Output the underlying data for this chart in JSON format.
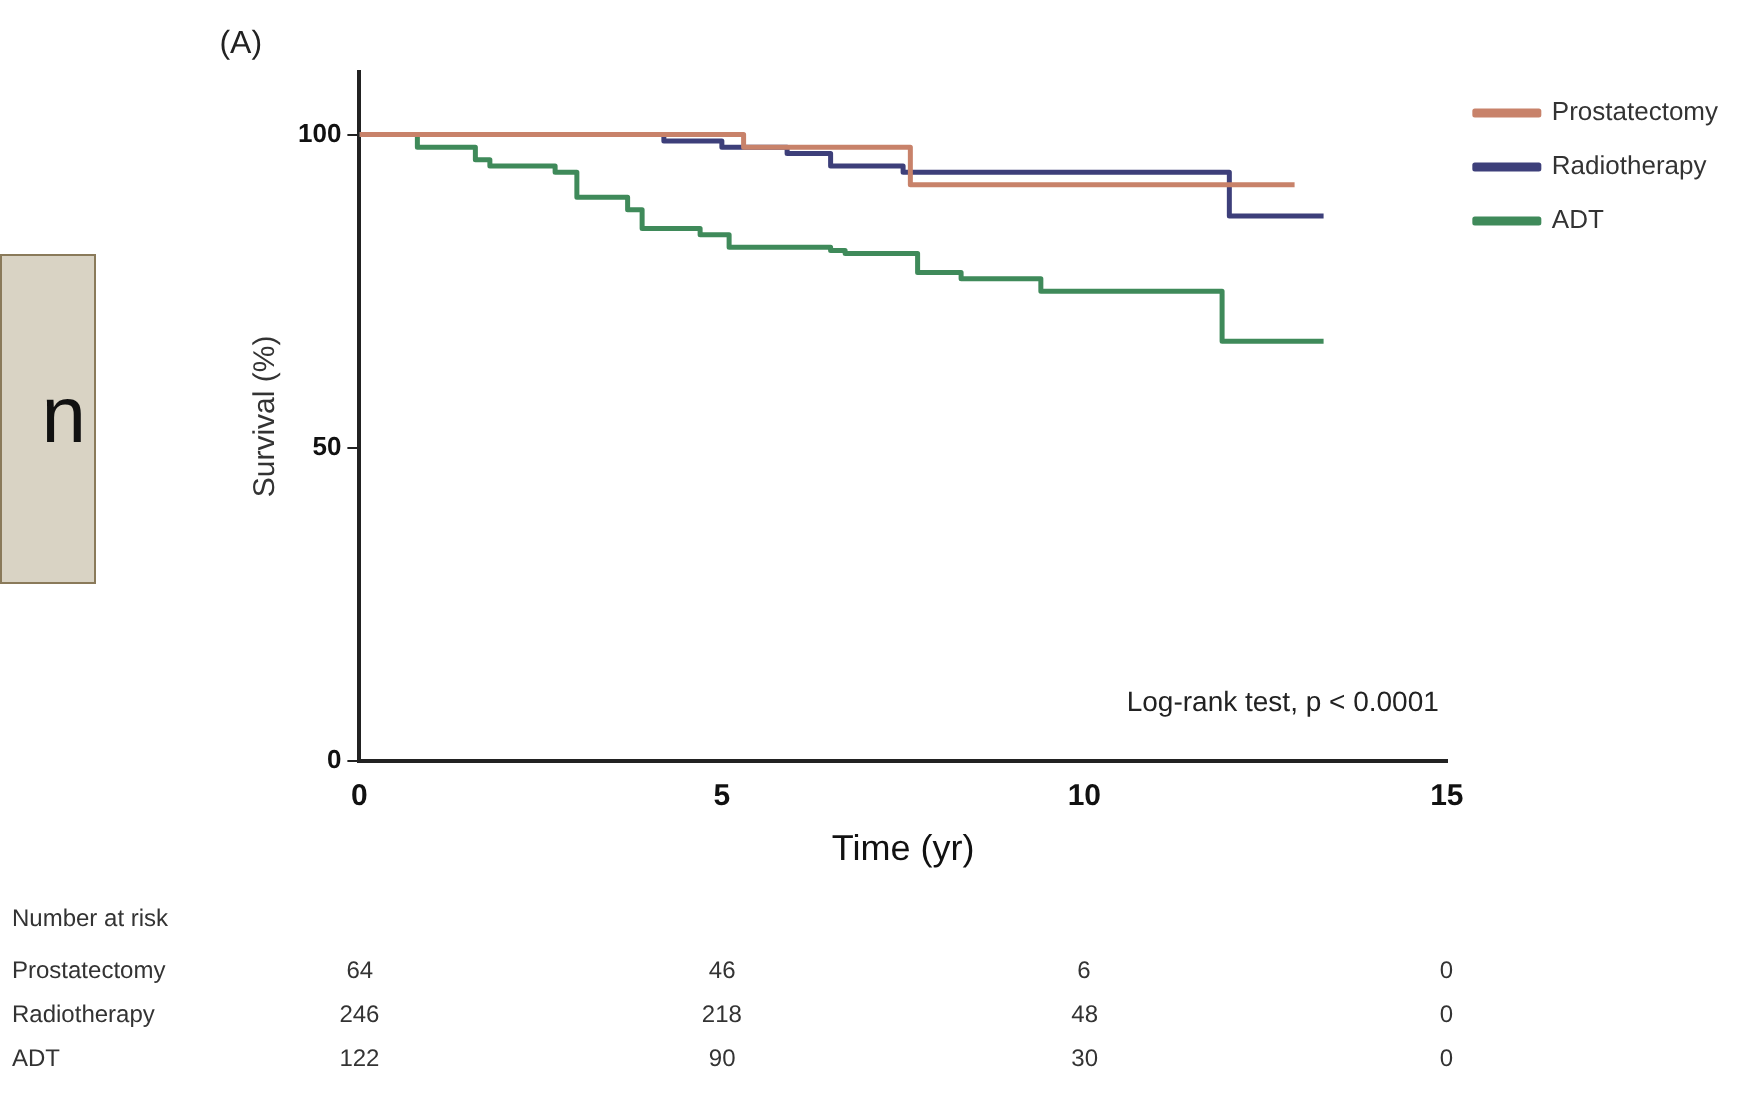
{
  "chart_data": {
    "type": "step",
    "title": "(A)",
    "xlabel": "Time (yr)",
    "ylabel": "Survival (%)",
    "xlim": [
      0,
      15
    ],
    "xticks": [
      0,
      5,
      10,
      15
    ],
    "ylim": [
      0,
      110
    ],
    "yticks": [
      0,
      50,
      100
    ],
    "grid": false,
    "legend": "top right",
    "marker": "none",
    "line_style": "solid",
    "series": [
      {
        "name": "Prostatectomy",
        "color": "#c8826a",
        "x": [
          0,
          5.3,
          7.6,
          12.9
        ],
        "values": [
          100,
          98,
          92,
          92
        ]
      },
      {
        "name": "Radiotherapy",
        "color": "#3d3f7a",
        "x": [
          0,
          4.2,
          5.0,
          5.9,
          6.5,
          7.5,
          12.0,
          13.3
        ],
        "values": [
          100,
          99,
          98,
          97,
          95,
          94,
          87,
          87
        ]
      },
      {
        "name": "ADT",
        "color": "#3f8a5a",
        "x": [
          0,
          0.8,
          1.6,
          1.8,
          2.7,
          3.0,
          3.7,
          3.9,
          4.7,
          5.1,
          6.5,
          6.7,
          7.7,
          8.3,
          9.4,
          11.9,
          13.3
        ],
        "values": [
          100,
          98,
          96,
          95,
          94,
          90,
          88,
          85,
          84,
          82,
          81.5,
          81,
          78,
          77,
          75,
          67,
          67
        ]
      }
    ],
    "annotations": [
      "Log-rank test, p < 0.0001",
      "n",
      "Number at risk",
      "Prostatectomy",
      "64",
      "46",
      "6",
      "0",
      "Radiotherapy",
      "246",
      "218",
      "48",
      "0",
      "ADT",
      "122",
      "90",
      "30",
      "0"
    ]
  }
}
